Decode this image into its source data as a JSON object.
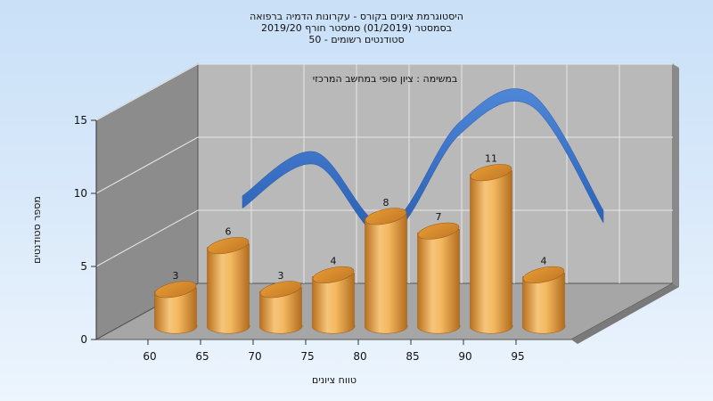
{
  "chart_data": {
    "type": "bar",
    "title_lines": [
      "היסטוגרמת ציונים בקורס - עקרונות הדמיה ברפואה",
      "בסמסטר  (01/2019)  סמסטר חורף 2019/20",
      "סטודנטים רשומים - 50"
    ],
    "annotation": "במשימה : ציון סופי במחשב המרכזי",
    "xlabel": "טווח ציונים",
    "ylabel": "מספר סטודנטים",
    "categories": [
      "60",
      "65",
      "70",
      "75",
      "80",
      "85",
      "90",
      "95"
    ],
    "values": [
      3,
      6,
      3,
      4,
      8,
      7,
      11,
      4
    ],
    "trend_line": [
      6,
      9,
      4,
      11,
      13,
      5
    ],
    "y_ticks": [
      "0",
      "5",
      "10",
      "15"
    ],
    "ylim": [
      0,
      15
    ],
    "grid": true,
    "colors": {
      "bar": "#f0a945",
      "trend": "#2f6bc6",
      "back_wall": "#b7b7b7",
      "side_wall": "#8e8e8e",
      "floor": "#a8a8a8"
    }
  }
}
